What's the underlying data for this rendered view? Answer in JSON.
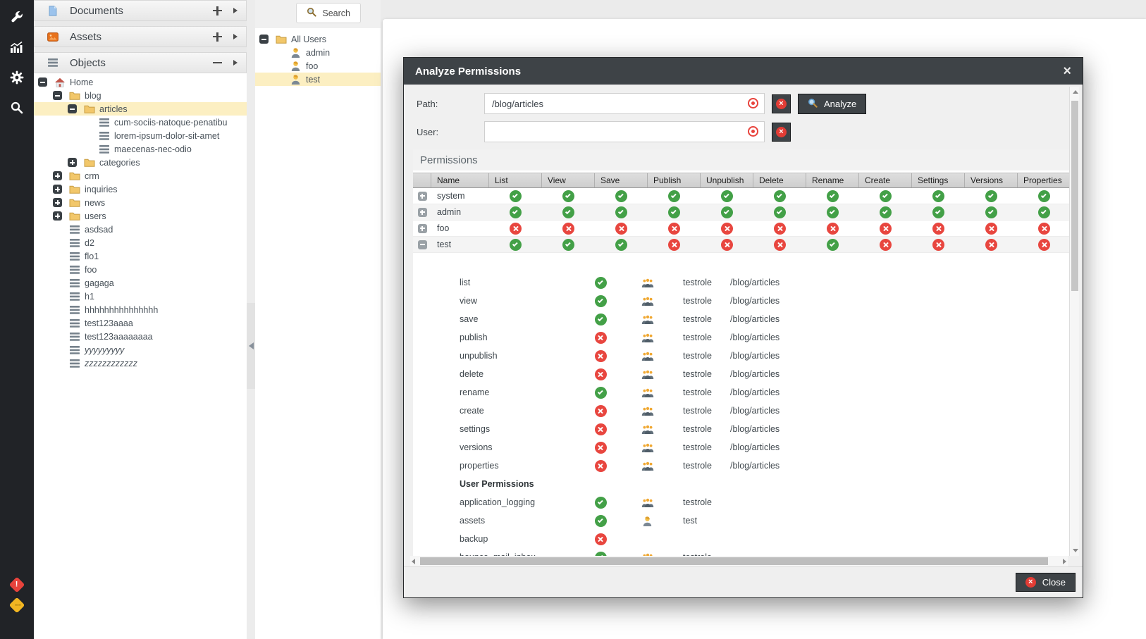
{
  "colors": {
    "selection_highlight": "#fcefc2",
    "success_green": "#43a047",
    "danger_red": "#e8463f",
    "panel_header_dark": "#3e4347",
    "sidebar_black": "#212327",
    "folder_yellow": "#f2c76a",
    "warning_diamond": "#f2b622",
    "error_diamond": "#e8433c"
  },
  "sidebar": {
    "tools": [
      "wrench",
      "stats",
      "gear",
      "search"
    ],
    "status": {
      "error_glyph": "!",
      "maintenance_glyph": "..."
    }
  },
  "accordion": [
    {
      "label": "Documents",
      "icon": "document",
      "toggle": "plus"
    },
    {
      "label": "Assets",
      "icon": "asset",
      "toggle": "plus"
    },
    {
      "label": "Objects",
      "icon": "object",
      "toggle": "minus"
    }
  ],
  "object_tree": [
    {
      "label": "Home",
      "depth": 0,
      "icon": "home",
      "expander": "minus"
    },
    {
      "label": "blog",
      "depth": 1,
      "icon": "folder",
      "expander": "minus"
    },
    {
      "label": "articles",
      "depth": 2,
      "icon": "folder",
      "expander": "minus",
      "selected": true
    },
    {
      "label": "cum-sociis-natoque-penatibu",
      "depth": 3,
      "icon": "object"
    },
    {
      "label": "lorem-ipsum-dolor-sit-amet",
      "depth": 3,
      "icon": "object"
    },
    {
      "label": "maecenas-nec-odio",
      "depth": 3,
      "icon": "object"
    },
    {
      "label": "categories",
      "depth": 2,
      "icon": "folder",
      "expander": "plus"
    },
    {
      "label": "crm",
      "depth": 1,
      "icon": "folder",
      "expander": "plus"
    },
    {
      "label": "inquiries",
      "depth": 1,
      "icon": "folder",
      "expander": "plus"
    },
    {
      "label": "news",
      "depth": 1,
      "icon": "folder",
      "expander": "plus"
    },
    {
      "label": "users",
      "depth": 1,
      "icon": "folder",
      "expander": "plus"
    },
    {
      "label": "asdsad",
      "depth": 1,
      "icon": "object"
    },
    {
      "label": "d2",
      "depth": 1,
      "icon": "object"
    },
    {
      "label": "flo1",
      "depth": 1,
      "icon": "object"
    },
    {
      "label": "foo",
      "depth": 1,
      "icon": "object"
    },
    {
      "label": "gagaga",
      "depth": 1,
      "icon": "object"
    },
    {
      "label": "h1",
      "depth": 1,
      "icon": "object"
    },
    {
      "label": "hhhhhhhhhhhhhhh",
      "depth": 1,
      "icon": "object"
    },
    {
      "label": "test123aaaa",
      "depth": 1,
      "icon": "object"
    },
    {
      "label": "test123aaaaaaaa",
      "depth": 1,
      "icon": "object"
    },
    {
      "label": "yyyyyyyyy",
      "depth": 1,
      "icon": "object",
      "italic": true
    },
    {
      "label": "zzzzzzzzzzzz",
      "depth": 1,
      "icon": "object",
      "italic": true
    }
  ],
  "user_panel": {
    "search_label": "Search",
    "tree": [
      {
        "label": "All Users",
        "depth": 0,
        "icon": "folder",
        "expander": "minus"
      },
      {
        "label": "admin",
        "depth": 1,
        "icon": "user"
      },
      {
        "label": "foo",
        "depth": 1,
        "icon": "user"
      },
      {
        "label": "test",
        "depth": 1,
        "icon": "user",
        "selected": true
      }
    ]
  },
  "dialog": {
    "title": "Analyze Permissions",
    "path_label": "Path:",
    "path_value": "/blog/articles",
    "user_label": "User:",
    "user_value": "",
    "analyze_label": "Analyze",
    "close_label": "Close",
    "permissions_title": "Permissions",
    "table": {
      "columns": [
        "Name",
        "List",
        "View",
        "Save",
        "Publish",
        "Unpublish",
        "Delete",
        "Rename",
        "Create",
        "Settings",
        "Versions",
        "Properties"
      ],
      "rows": [
        {
          "name": "system",
          "expanded": false,
          "perms": [
            true,
            true,
            true,
            true,
            true,
            true,
            true,
            true,
            true,
            true,
            true
          ]
        },
        {
          "name": "admin",
          "expanded": false,
          "perms": [
            true,
            true,
            true,
            true,
            true,
            true,
            true,
            true,
            true,
            true,
            true
          ]
        },
        {
          "name": "foo",
          "expanded": false,
          "perms": [
            false,
            false,
            false,
            false,
            false,
            false,
            false,
            false,
            false,
            false,
            false
          ]
        },
        {
          "name": "test",
          "expanded": true,
          "perms": [
            true,
            true,
            true,
            false,
            false,
            false,
            true,
            false,
            false,
            false,
            false
          ]
        }
      ]
    },
    "details": [
      {
        "type": "perm",
        "name": "list",
        "allowed": true,
        "who": "role",
        "via": "testrole",
        "path": "/blog/articles"
      },
      {
        "type": "perm",
        "name": "view",
        "allowed": true,
        "who": "role",
        "via": "testrole",
        "path": "/blog/articles"
      },
      {
        "type": "perm",
        "name": "save",
        "allowed": true,
        "who": "role",
        "via": "testrole",
        "path": "/blog/articles"
      },
      {
        "type": "perm",
        "name": "publish",
        "allowed": false,
        "who": "role",
        "via": "testrole",
        "path": "/blog/articles"
      },
      {
        "type": "perm",
        "name": "unpublish",
        "allowed": false,
        "who": "role",
        "via": "testrole",
        "path": "/blog/articles"
      },
      {
        "type": "perm",
        "name": "delete",
        "allowed": false,
        "who": "role",
        "via": "testrole",
        "path": "/blog/articles"
      },
      {
        "type": "perm",
        "name": "rename",
        "allowed": true,
        "who": "role",
        "via": "testrole",
        "path": "/blog/articles"
      },
      {
        "type": "perm",
        "name": "create",
        "allowed": false,
        "who": "role",
        "via": "testrole",
        "path": "/blog/articles"
      },
      {
        "type": "perm",
        "name": "settings",
        "allowed": false,
        "who": "role",
        "via": "testrole",
        "path": "/blog/articles"
      },
      {
        "type": "perm",
        "name": "versions",
        "allowed": false,
        "who": "role",
        "via": "testrole",
        "path": "/blog/articles"
      },
      {
        "type": "perm",
        "name": "properties",
        "allowed": false,
        "who": "role",
        "via": "testrole",
        "path": "/blog/articles"
      },
      {
        "type": "heading",
        "name": "User Permissions"
      },
      {
        "type": "perm",
        "name": "application_logging",
        "allowed": true,
        "who": "role",
        "via": "testrole",
        "path": ""
      },
      {
        "type": "perm",
        "name": "assets",
        "allowed": true,
        "who": "user",
        "via": "test",
        "path": ""
      },
      {
        "type": "perm",
        "name": "backup",
        "allowed": false,
        "who": "",
        "via": "",
        "path": ""
      },
      {
        "type": "perm",
        "name": "bounce_mail_inbox",
        "allowed": true,
        "who": "role",
        "via": "testrole",
        "path": ""
      }
    ]
  }
}
